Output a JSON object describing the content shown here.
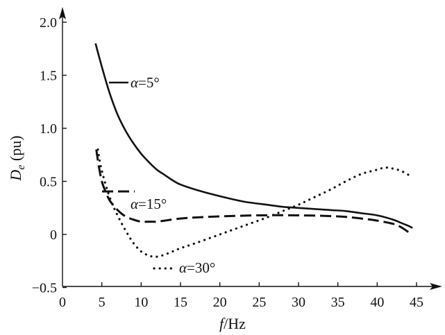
{
  "chart_data": {
    "type": "line",
    "xlabel": {
      "var": "f",
      "unit": "/Hz"
    },
    "ylabel": {
      "var": "D",
      "sub": "e",
      "unit": " (pu)"
    },
    "xlim": [
      0,
      46
    ],
    "ylim": [
      -0.5,
      2.0
    ],
    "xticks": [
      "0",
      "5",
      "10",
      "15",
      "20",
      "25",
      "30",
      "35",
      "40",
      "45"
    ],
    "yticks": [
      "−0.5",
      "0",
      "0.5",
      "1.0",
      "1.5",
      "2.0"
    ],
    "grid": false,
    "series": [
      {
        "name": "α=5°",
        "label_parts": {
          "sym": "α",
          "rest": "=5°"
        },
        "style": "solid",
        "x": [
          4.2,
          5,
          6,
          7,
          8,
          9,
          10,
          11,
          12,
          13,
          14,
          15,
          17,
          20,
          23,
          26,
          28,
          30,
          32,
          34,
          36,
          38,
          40,
          42,
          43,
          44,
          44.5
        ],
        "values": [
          1.8,
          1.58,
          1.33,
          1.13,
          0.98,
          0.86,
          0.76,
          0.68,
          0.61,
          0.56,
          0.51,
          0.47,
          0.42,
          0.36,
          0.31,
          0.28,
          0.26,
          0.25,
          0.24,
          0.23,
          0.22,
          0.2,
          0.18,
          0.14,
          0.11,
          0.08,
          0.06
        ]
      },
      {
        "name": "α=15°",
        "label_parts": {
          "sym": "α",
          "rest": "=15°"
        },
        "style": "dashed",
        "x": [
          4.3,
          4.6,
          5,
          5.5,
          6,
          7,
          8,
          9,
          10,
          11,
          12,
          13,
          15,
          17,
          20,
          25,
          30,
          35,
          38,
          40,
          42,
          43,
          44
        ],
        "values": [
          0.8,
          0.65,
          0.5,
          0.4,
          0.32,
          0.23,
          0.17,
          0.14,
          0.12,
          0.12,
          0.12,
          0.13,
          0.15,
          0.16,
          0.17,
          0.18,
          0.18,
          0.17,
          0.15,
          0.13,
          0.1,
          0.07,
          0.02
        ]
      },
      {
        "name": "α=30°",
        "label_parts": {
          "sym": "α",
          "rest": "=30°"
        },
        "style": "dotted",
        "x": [
          4.5,
          5,
          6,
          7,
          8,
          9,
          10,
          11,
          12,
          13,
          14,
          15,
          17,
          20,
          23,
          26,
          28,
          30,
          32,
          34,
          36,
          38,
          40,
          41,
          42,
          43,
          44
        ],
        "values": [
          0.8,
          0.6,
          0.35,
          0.18,
          0.04,
          -0.08,
          -0.16,
          -0.2,
          -0.21,
          -0.19,
          -0.16,
          -0.13,
          -0.08,
          0.0,
          0.08,
          0.16,
          0.22,
          0.28,
          0.35,
          0.42,
          0.5,
          0.57,
          0.61,
          0.63,
          0.62,
          0.6,
          0.56
        ]
      }
    ]
  }
}
